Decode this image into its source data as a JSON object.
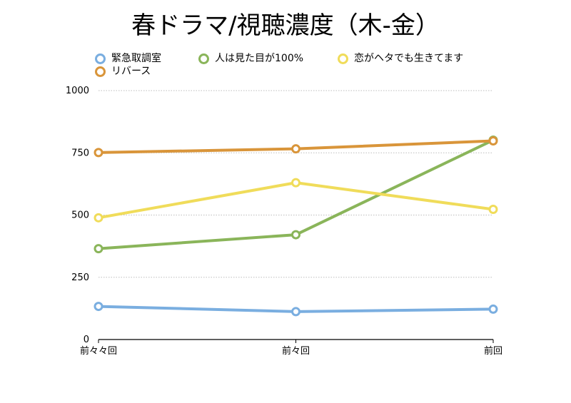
{
  "chart_data": {
    "type": "line",
    "title": "春ドラマ/視聴濃度（木-金）",
    "xlabel": "",
    "ylabel": "",
    "categories": [
      "前々々回",
      "前々回",
      "前回"
    ],
    "ylim": [
      0,
      1000
    ],
    "yticks": [
      "0",
      "250",
      "500",
      "750",
      "1000"
    ],
    "grid": true,
    "legend_position": "top",
    "series": [
      {
        "name": "緊急取調室",
        "color": "#7aaee0",
        "values": [
          133,
          112,
          122
        ]
      },
      {
        "name": "人は見た目が100%",
        "color": "#8ab55a",
        "values": [
          365,
          421,
          801
        ]
      },
      {
        "name": "恋がヘタでも生きてます",
        "color": "#f0dc5a",
        "values": [
          489,
          630,
          523
        ]
      },
      {
        "name": "リバース",
        "color": "#d9953a",
        "values": [
          751,
          766,
          798
        ]
      }
    ]
  }
}
